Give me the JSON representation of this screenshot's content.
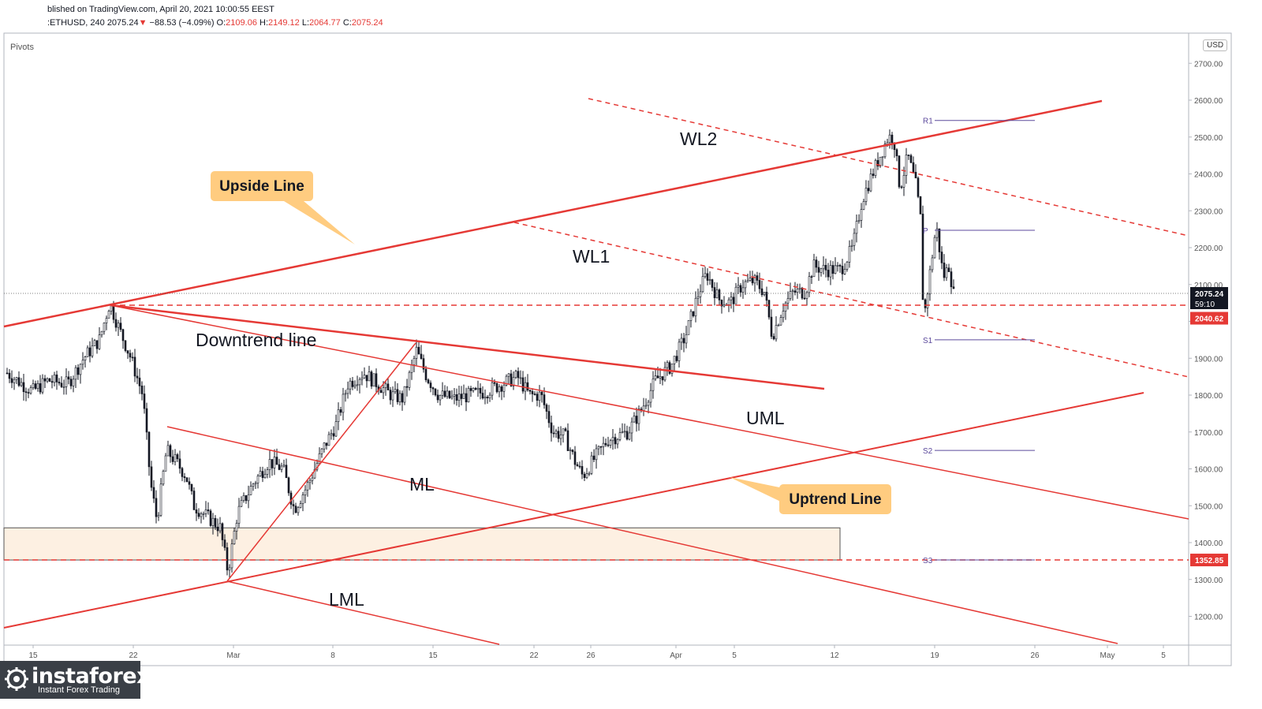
{
  "header": {
    "published": "blished on TradingView.com, April 20, 2021 10:00:55 EEST",
    "symbol": ":ETHUSD, 240",
    "last": "2075.24",
    "change_arrow": "▼",
    "change": "−88.53 (−4.09%)",
    "o_label": "O:",
    "o": "2109.06",
    "h_label": "H:",
    "h": "2149.12",
    "l_label": "L:",
    "l": "2064.77",
    "c_label": "C:",
    "c": "2075.24"
  },
  "indicator_label": "Pivots",
  "currency": "USD",
  "logo": {
    "brand": "instaforex",
    "tagline": "Instant Forex Trading"
  },
  "colors": {
    "trendline": "#e53935",
    "pivot": "#5c4a9c",
    "callout_fill": "#ffcc80",
    "zone_fill": "#fdf0e2",
    "candle": "#131722",
    "price_tag_bg": "#131722",
    "level_tag_bg": "#e53935"
  },
  "chart_data": {
    "type": "candlestick",
    "symbol": "ETHUSD",
    "timeframe": "240",
    "y_axis": {
      "ticks": [
        1200,
        1300,
        1400,
        1500,
        1600,
        1700,
        1800,
        1900,
        2000,
        2100,
        2200,
        2300,
        2400,
        2500,
        2600,
        2700
      ],
      "ylim": [
        1130,
        2760
      ]
    },
    "x_axis": {
      "ticks": [
        "15",
        "22",
        "Mar",
        "8",
        "15",
        "22",
        "26",
        "Apr",
        "5",
        "12",
        "19",
        "26",
        "May",
        "5"
      ]
    },
    "last_price": {
      "value": "2075.24",
      "countdown": "59:10"
    },
    "horizontal_levels": [
      {
        "label": "2040.62",
        "value": 2040.62,
        "style": "dashed"
      },
      {
        "label": "1352.85",
        "value": 1352.85,
        "style": "dashed"
      }
    ],
    "pivots": [
      {
        "label": "R1",
        "value": 2545
      },
      {
        "label": "P",
        "value": 2247
      },
      {
        "label": "S1",
        "value": 1950
      },
      {
        "label": "S2",
        "value": 1650
      },
      {
        "label": "S3",
        "value": 1352.85
      }
    ],
    "annotations": [
      {
        "text": "WL2"
      },
      {
        "text": "WL1"
      },
      {
        "text": "Downtrend line"
      },
      {
        "text": "UML"
      },
      {
        "text": "ML"
      },
      {
        "text": "LML"
      }
    ],
    "callouts": [
      {
        "text": "Upside Line"
      },
      {
        "text": "Uptrend Line"
      }
    ],
    "demand_zone": {
      "from": 1352.85,
      "to": 1440
    }
  }
}
